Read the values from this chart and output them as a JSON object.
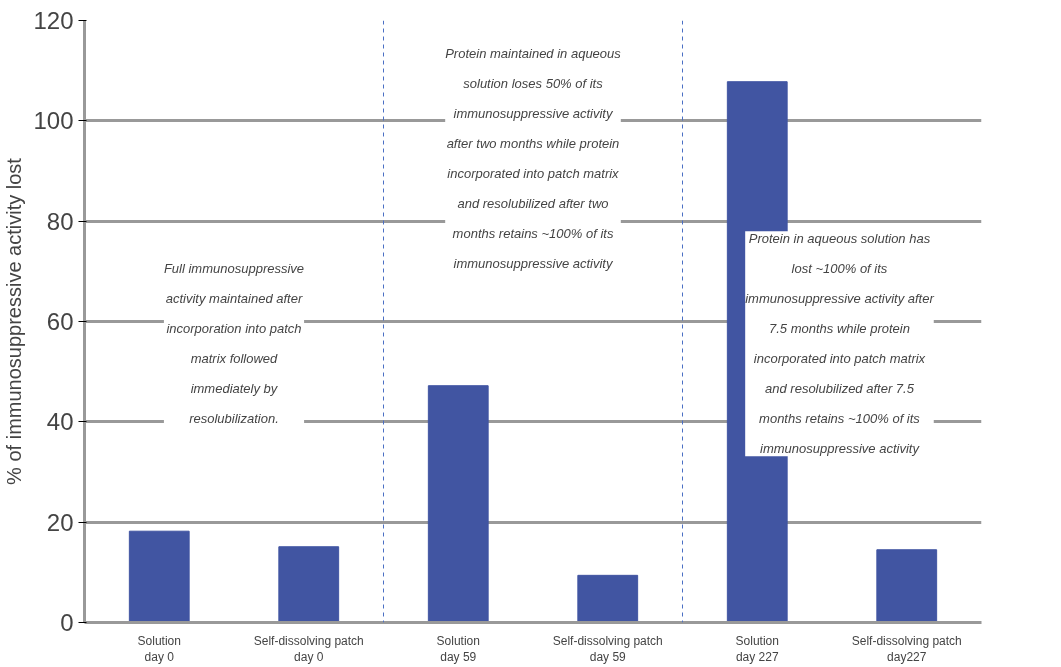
{
  "chart_data": {
    "type": "bar",
    "ylabel": "% of immunosuppressive activity lost",
    "categories": [
      "Solution\nday 0",
      "Self-dissolving patch\nday 0",
      "Solution\nday 59",
      "Self-dissolving patch\nday 59",
      "Solution\nday 227",
      "Self-dissolving patch\nday227"
    ],
    "values": [
      18.2,
      15.1,
      47.2,
      9.4,
      107.8,
      14.5
    ],
    "color": "#4155a2",
    "ylim": [
      0,
      120
    ],
    "yticks": [
      0,
      20,
      40,
      60,
      80,
      100,
      120
    ],
    "grid": "y",
    "annotations": [
      "Full immunosuppressive activity maintained after incorporation into patch matrix followed immediately by resolubilization.",
      "Protein maintained in aqueous solution loses 50% of its immunosuppressive activity after two months while protein incorporated into patch matrix and resolubilized after two months retains ~100% of its immunosuppressive activity",
      "Protein in aqueous solution has lost ~100% of its immunosuppressive activity after 7.5 months while protein incorporated into patch matrix and resolubilized after 7.5 months retains ~100% of its immunosuppressive activity"
    ]
  }
}
